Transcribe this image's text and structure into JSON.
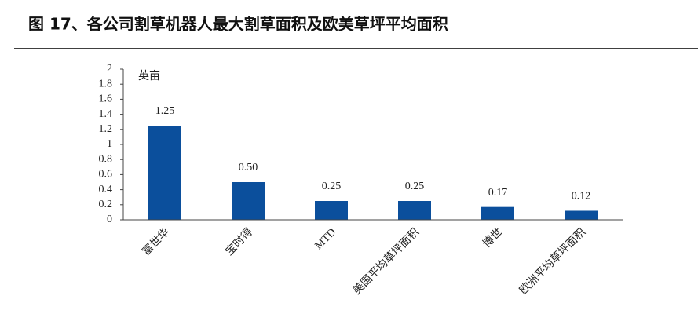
{
  "chart_data": {
    "type": "bar",
    "title": "图 17、各公司割草机器人最大割草面积及欧美草坪平均面积",
    "y_label": "英亩",
    "categories": [
      "富世华",
      "宝时得",
      "MTD",
      "美国平均草坪面积",
      "博世",
      "欧洲平均草坪面积"
    ],
    "values": [
      1.25,
      0.5,
      0.25,
      0.25,
      0.17,
      0.12
    ],
    "value_labels": [
      "1.25",
      "0.50",
      "0.25",
      "0.25",
      "0.17",
      "0.12"
    ],
    "color": "#0b4f9c",
    "ylim": [
      0,
      2
    ],
    "yticks": [
      0,
      0.2,
      0.4,
      0.6,
      0.8,
      1,
      1.2,
      1.4,
      1.6,
      1.8,
      2
    ],
    "grid": false
  }
}
